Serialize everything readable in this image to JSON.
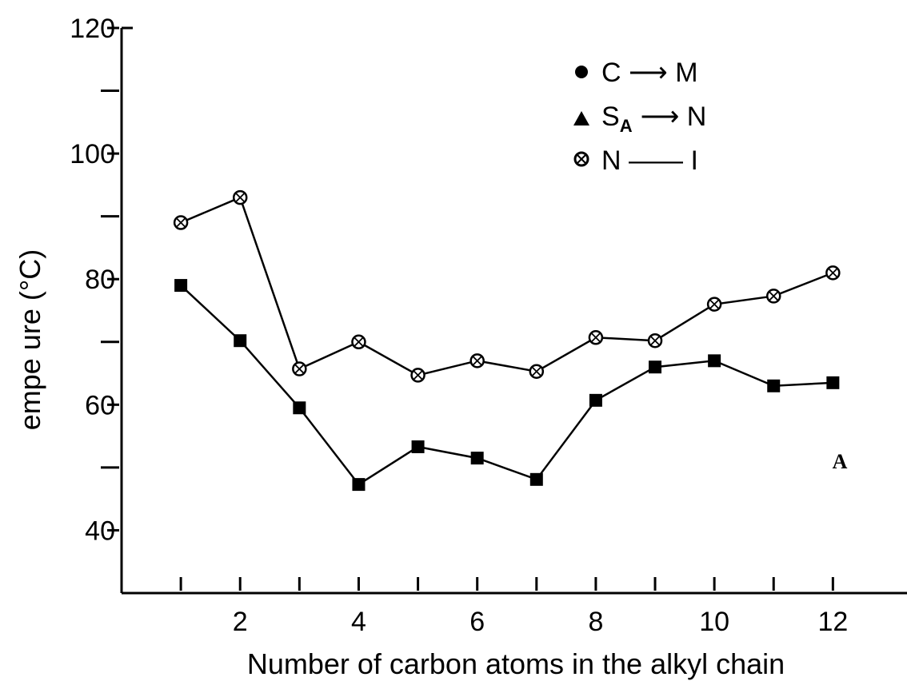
{
  "chart_data": {
    "type": "line",
    "title": "",
    "xlabel": "Number of carbon atoms in the alkyl chain",
    "ylabel": "empe ure (°C)",
    "xlim": [
      0,
      13.25
    ],
    "ylim": [
      30,
      120
    ],
    "x": [
      1,
      2,
      3,
      4,
      5,
      6,
      7,
      8,
      9,
      10,
      11,
      12
    ],
    "x_tick_labels": [
      "2",
      "4",
      "6",
      "8",
      "10",
      "12"
    ],
    "x_tick_values": [
      2,
      4,
      6,
      8,
      10,
      12
    ],
    "y_tick_labels": [
      "120",
      "100",
      "80",
      "60",
      "40"
    ],
    "y_tick_values": [
      120,
      100,
      80,
      60,
      40
    ],
    "series": [
      {
        "name": "N — I",
        "marker": "circle-cross",
        "values": [
          89,
          93,
          65.7,
          70,
          64.7,
          67,
          65.3,
          70.7,
          70.2,
          76,
          77.3,
          81
        ]
      },
      {
        "marker": "square",
        "values": [
          79,
          70.2,
          59.5,
          47.3,
          53.3,
          51.5,
          48.1,
          60.7,
          66,
          67,
          63,
          63.5
        ]
      }
    ],
    "legend": {
      "position": "top-right",
      "entries": [
        {
          "marker": "circle",
          "text": "C ⟶ M"
        },
        {
          "marker": "triangle",
          "text_main": "S",
          "text_sub": "A",
          "text_tail": "⟶ N"
        },
        {
          "marker": "circle-cross",
          "text": "N —— I"
        }
      ]
    },
    "annotation": "A",
    "grid": false
  }
}
